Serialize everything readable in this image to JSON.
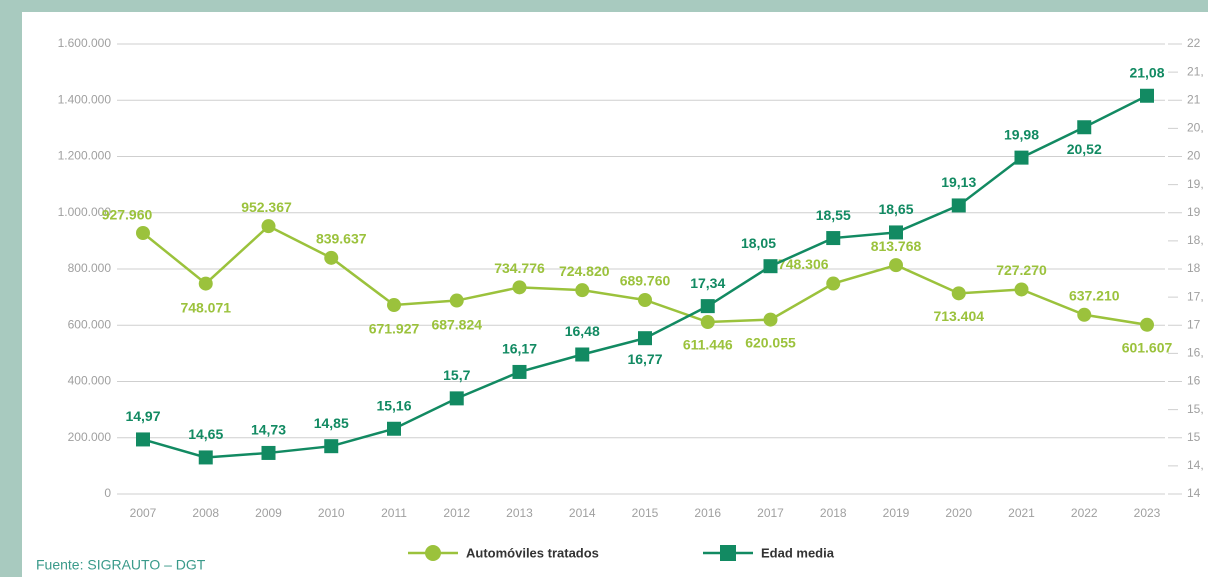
{
  "chart_data": {
    "type": "line",
    "categories": [
      "2007",
      "2008",
      "2009",
      "2010",
      "2011",
      "2012",
      "2013",
      "2014",
      "2015",
      "2016",
      "2017",
      "2018",
      "2019",
      "2020",
      "2021",
      "2022",
      "2023"
    ],
    "series": [
      {
        "name": "Automóviles tratados",
        "color": "#9bc23c",
        "values": [
          927960,
          748071,
          952367,
          839637,
          671927,
          687824,
          734776,
          724820,
          689760,
          611446,
          620055,
          748306,
          813768,
          713404,
          727270,
          637210,
          601607
        ],
        "value_labels": [
          "927.960",
          "748.071",
          "952.367",
          "839.637",
          "671.927",
          "687.824",
          "734.776",
          "724.820",
          "689.760",
          "611.446",
          "620.055",
          "748.306",
          "813.768",
          "713.404",
          "727.270",
          "637.210",
          "601.607"
        ]
      },
      {
        "name": "Edad media",
        "color": "#128a62",
        "axis": "y2",
        "values": [
          14.97,
          14.65,
          14.73,
          14.85,
          15.16,
          15.7,
          16.17,
          16.48,
          16.77,
          17.34,
          18.05,
          18.55,
          18.65,
          19.13,
          19.98,
          20.52,
          21.08
        ],
        "value_labels": [
          "14,97",
          "14,65",
          "14,73",
          "14,85",
          "15,16",
          "15,7",
          "16,17",
          "16,48",
          "16,77",
          "17,34",
          "18,05",
          "18,55",
          "18,65",
          "19,13",
          "19,98",
          "20,52",
          "21,08"
        ]
      }
    ],
    "ylim": [
      0,
      1600000
    ],
    "yticks": [
      0,
      {
        "value": 200000,
        "label": "200.000"
      },
      {
        "value": 400000,
        "label": "400.000"
      },
      {
        "value": 600000,
        "label": "600.000"
      },
      {
        "value": 800000,
        "label": "800.000"
      },
      {
        "value": 1000000,
        "label": "1.000.000"
      },
      {
        "value": 1200000,
        "label": "1.200.000"
      },
      {
        "value": 1400000,
        "label": "1.400.000"
      },
      {
        "value": 1600000,
        "label": "1.600.000"
      }
    ],
    "y2lim": [
      14,
      22
    ],
    "y2ticks": [
      14,
      {
        "value": 14.5,
        "label": "14,"
      },
      15,
      {
        "value": 15.5,
        "label": "15,"
      },
      16,
      {
        "value": 16.5,
        "label": "16,"
      },
      17,
      {
        "value": 17.5,
        "label": "17,"
      },
      18,
      {
        "value": 18.5,
        "label": "18,"
      },
      19,
      {
        "value": 19.5,
        "label": "19,"
      },
      20,
      {
        "value": 20.5,
        "label": "20,"
      },
      21,
      {
        "value": 21.5,
        "label": "21,"
      },
      22
    ],
    "grid": true,
    "legend": "bottom",
    "source": "Fuente: SIGRAUTO – DGT"
  }
}
